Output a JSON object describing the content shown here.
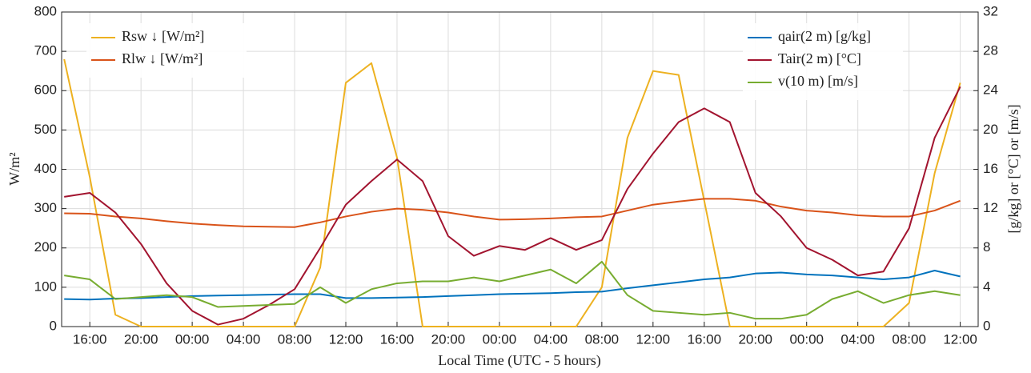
{
  "chart_data": {
    "type": "line",
    "xlabel": "Local Time (UTC - 5 hours)",
    "ylabel": "W/m²",
    "y2label": "[g/kg] or [°C] or [m/s]",
    "x": [
      14,
      16,
      18,
      20,
      22,
      24,
      26,
      28,
      30,
      32,
      34,
      36,
      38,
      40,
      42,
      44,
      46,
      48,
      50,
      52,
      54,
      56,
      58,
      60,
      62,
      64,
      66,
      68,
      70,
      72,
      74,
      76,
      78,
      80,
      82,
      84
    ],
    "xlim": [
      13.8,
      85.4
    ],
    "xticks": [
      {
        "value": 16,
        "label": "16:00"
      },
      {
        "value": 20,
        "label": "20:00"
      },
      {
        "value": 24,
        "label": "00:00"
      },
      {
        "value": 28,
        "label": "04:00"
      },
      {
        "value": 32,
        "label": "08:00"
      },
      {
        "value": 36,
        "label": "12:00"
      },
      {
        "value": 40,
        "label": "16:00"
      },
      {
        "value": 44,
        "label": "20:00"
      },
      {
        "value": 48,
        "label": "00:00"
      },
      {
        "value": 52,
        "label": "04:00"
      },
      {
        "value": 56,
        "label": "08:00"
      },
      {
        "value": 60,
        "label": "12:00"
      },
      {
        "value": 64,
        "label": "16:00"
      },
      {
        "value": 68,
        "label": "20:00"
      },
      {
        "value": 72,
        "label": "00:00"
      },
      {
        "value": 76,
        "label": "04:00"
      },
      {
        "value": 80,
        "label": "08:00"
      },
      {
        "value": 84,
        "label": "12:00"
      }
    ],
    "ylim": [
      0,
      800
    ],
    "yticks": [
      0,
      100,
      200,
      300,
      400,
      500,
      600,
      700,
      800
    ],
    "y2lim": [
      0,
      32
    ],
    "y2ticks": [
      0,
      4,
      8,
      12,
      16,
      20,
      24,
      28,
      32
    ],
    "grid": true,
    "series": [
      {
        "name": "Rsw ↓ [W/m²]",
        "color": "#EDB120",
        "values": [
          680,
          380,
          30,
          0,
          0,
          0,
          0,
          0,
          0,
          0,
          150,
          620,
          670,
          430,
          0,
          0,
          0,
          0,
          0,
          0,
          0,
          100,
          480,
          650,
          640,
          320,
          0,
          0,
          0,
          0,
          0,
          0,
          0,
          60,
          390,
          620
        ]
      },
      {
        "name": "Rlw ↓ [W/m²]",
        "color": "#D95319",
        "values": [
          288,
          287,
          280,
          275,
          268,
          262,
          258,
          255,
          254,
          253,
          265,
          280,
          292,
          300,
          297,
          290,
          280,
          272,
          273,
          275,
          278,
          280,
          295,
          310,
          318,
          325,
          325,
          320,
          305,
          295,
          290,
          283,
          280,
          280,
          295,
          320
        ]
      },
      {
        "name": "qair(2 m)  [g/kg]",
        "color": "#0072BD",
        "axis": "y2",
        "values": [
          2.8,
          2.75,
          2.85,
          2.9,
          3.0,
          3.1,
          3.15,
          3.2,
          3.25,
          3.3,
          3.3,
          2.9,
          2.9,
          2.95,
          3.0,
          3.1,
          3.2,
          3.3,
          3.35,
          3.4,
          3.5,
          3.55,
          3.9,
          4.2,
          4.5,
          4.8,
          5.0,
          5.4,
          5.5,
          5.3,
          5.2,
          5.0,
          4.8,
          5.0,
          5.7,
          5.1
        ]
      },
      {
        "name": "Tair(2 m)  [°C]",
        "color": "#A2142F",
        "axis": "y2",
        "values": [
          13.2,
          13.6,
          11.6,
          8.4,
          4.4,
          1.6,
          0.2,
          0.8,
          2.2,
          3.8,
          8,
          12.4,
          14.8,
          17,
          14.8,
          9.2,
          7.2,
          8.2,
          7.8,
          9,
          7.8,
          8.8,
          14,
          17.6,
          20.8,
          22.2,
          20.8,
          13.6,
          11.2,
          8,
          6.8,
          5.2,
          5.6,
          10,
          19.2,
          24.4
        ]
      },
      {
        "name": "v(10 m)   [m/s]",
        "color": "#77AC30",
        "axis": "y2",
        "values": [
          5.2,
          4.8,
          2.8,
          3,
          3.2,
          3,
          2,
          2.1,
          2.2,
          2.3,
          4,
          2.4,
          3.8,
          4.4,
          4.6,
          4.6,
          5,
          4.6,
          5.2,
          5.8,
          4.4,
          6.6,
          3.2,
          1.6,
          1.4,
          1.2,
          1.4,
          0.8,
          0.8,
          1.2,
          2.8,
          3.6,
          2.4,
          3.2,
          3.6,
          3.2
        ]
      }
    ]
  }
}
